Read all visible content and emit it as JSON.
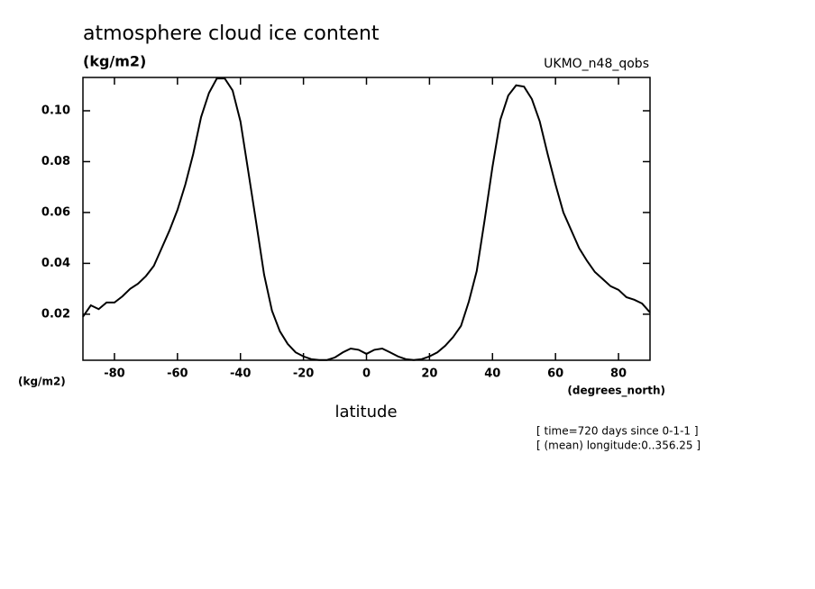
{
  "chart_data": {
    "type": "line",
    "title": "atmosphere cloud ice content",
    "units": "(kg/m2)",
    "dataset": "UKMO_n48_qobs",
    "y_label": "(kg/m2)",
    "x_units": "(degrees_north)",
    "x_label": "latitude",
    "annotations": [
      "[ time=720 days since 0-1-1 ]",
      "[ (mean) longitude:0..356.25 ]"
    ],
    "x": [
      -90,
      -87.5,
      -85,
      -82.5,
      -80,
      -77.5,
      -75,
      -72.5,
      -70,
      -67.5,
      -65,
      -62.5,
      -60,
      -57.5,
      -55,
      -52.5,
      -50,
      -47.5,
      -45,
      -42.5,
      -40,
      -37.5,
      -35,
      -32.5,
      -30,
      -27.5,
      -25,
      -22.5,
      -20,
      -17.5,
      -15,
      -12.5,
      -10,
      -7.5,
      -5,
      -2.5,
      0,
      2.5,
      5,
      7.5,
      10,
      12.5,
      15,
      17.5,
      20,
      22.5,
      25,
      27.5,
      30,
      32.5,
      35,
      37.5,
      40,
      42.5,
      45,
      47.5,
      50,
      52.5,
      55,
      57.5,
      60,
      62.5,
      65,
      67.5,
      70,
      72.5,
      75,
      77.5,
      80,
      82.5,
      85,
      87.5,
      90
    ],
    "series": [
      {
        "name": "UKMO_n48_qobs",
        "color": "#000000",
        "values": [
          0.019,
          0.0235,
          0.022,
          0.0246,
          0.0246,
          0.027,
          0.03,
          0.032,
          0.035,
          0.039,
          0.046,
          0.053,
          0.061,
          0.071,
          0.083,
          0.0975,
          0.107,
          0.1127,
          0.1127,
          0.108,
          0.0958,
          0.076,
          0.056,
          0.0356,
          0.0214,
          0.0133,
          0.0083,
          0.005,
          0.0034,
          0.0023,
          0.002,
          0.002,
          0.003,
          0.005,
          0.0065,
          0.006,
          0.0044,
          0.006,
          0.0065,
          0.005,
          0.0034,
          0.0023,
          0.002,
          0.0023,
          0.0034,
          0.005,
          0.0076,
          0.011,
          0.0154,
          0.025,
          0.037,
          0.057,
          0.078,
          0.0965,
          0.106,
          0.11,
          0.1095,
          0.1046,
          0.0958,
          0.083,
          0.071,
          0.06,
          0.053,
          0.046,
          0.041,
          0.0366,
          0.0338,
          0.031,
          0.0296,
          0.0267,
          0.0257,
          0.0242,
          0.0207
        ]
      }
    ],
    "xlim": [
      -90,
      90
    ],
    "ylim": [
      0.0019,
      0.1131
    ],
    "xticks": [
      -80,
      -60,
      -40,
      -20,
      0,
      20,
      40,
      60,
      80
    ],
    "yticks": [
      0.02,
      0.04,
      0.06,
      0.08,
      {
        "value": 0.1,
        "label": "0.10"
      }
    ]
  }
}
